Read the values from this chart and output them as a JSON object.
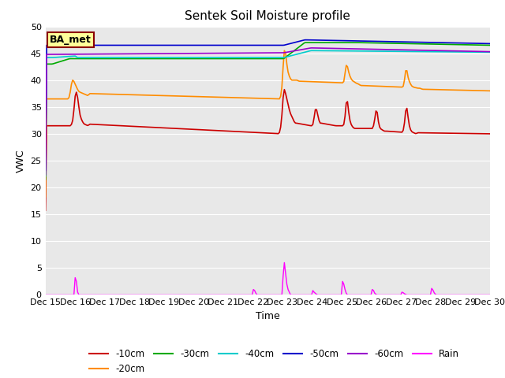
{
  "title": "Sentek Soil Moisture profile",
  "xlabel": "Time",
  "ylabel": "VWC",
  "ylim": [
    0,
    50
  ],
  "xlim": [
    0,
    15
  ],
  "yticks": [
    0,
    5,
    10,
    15,
    20,
    25,
    30,
    35,
    40,
    45,
    50
  ],
  "xtick_labels": [
    "Dec 15",
    "Dec 16",
    "Dec 17",
    "Dec 18",
    "Dec 19",
    "Dec 20",
    "Dec 21",
    "Dec 22",
    "Dec 23",
    "Dec 24",
    "Dec 25",
    "Dec 26",
    "Dec 27",
    "Dec 28",
    "Dec 29",
    "Dec 30"
  ],
  "annotation_text": "BA_met",
  "annotation_bg": "#ffff99",
  "annotation_border": "#8b0000",
  "line_colors": {
    "-10cm": "#cc0000",
    "-20cm": "#ff8c00",
    "-30cm": "#00aa00",
    "-40cm": "#00cccc",
    "-50cm": "#0000cc",
    "-60cm": "#9900cc",
    "Rain": "#ff00ff"
  },
  "plot_bg": "#e8e8e8",
  "fig_bg": "#ffffff",
  "grid_color": "#ffffff"
}
